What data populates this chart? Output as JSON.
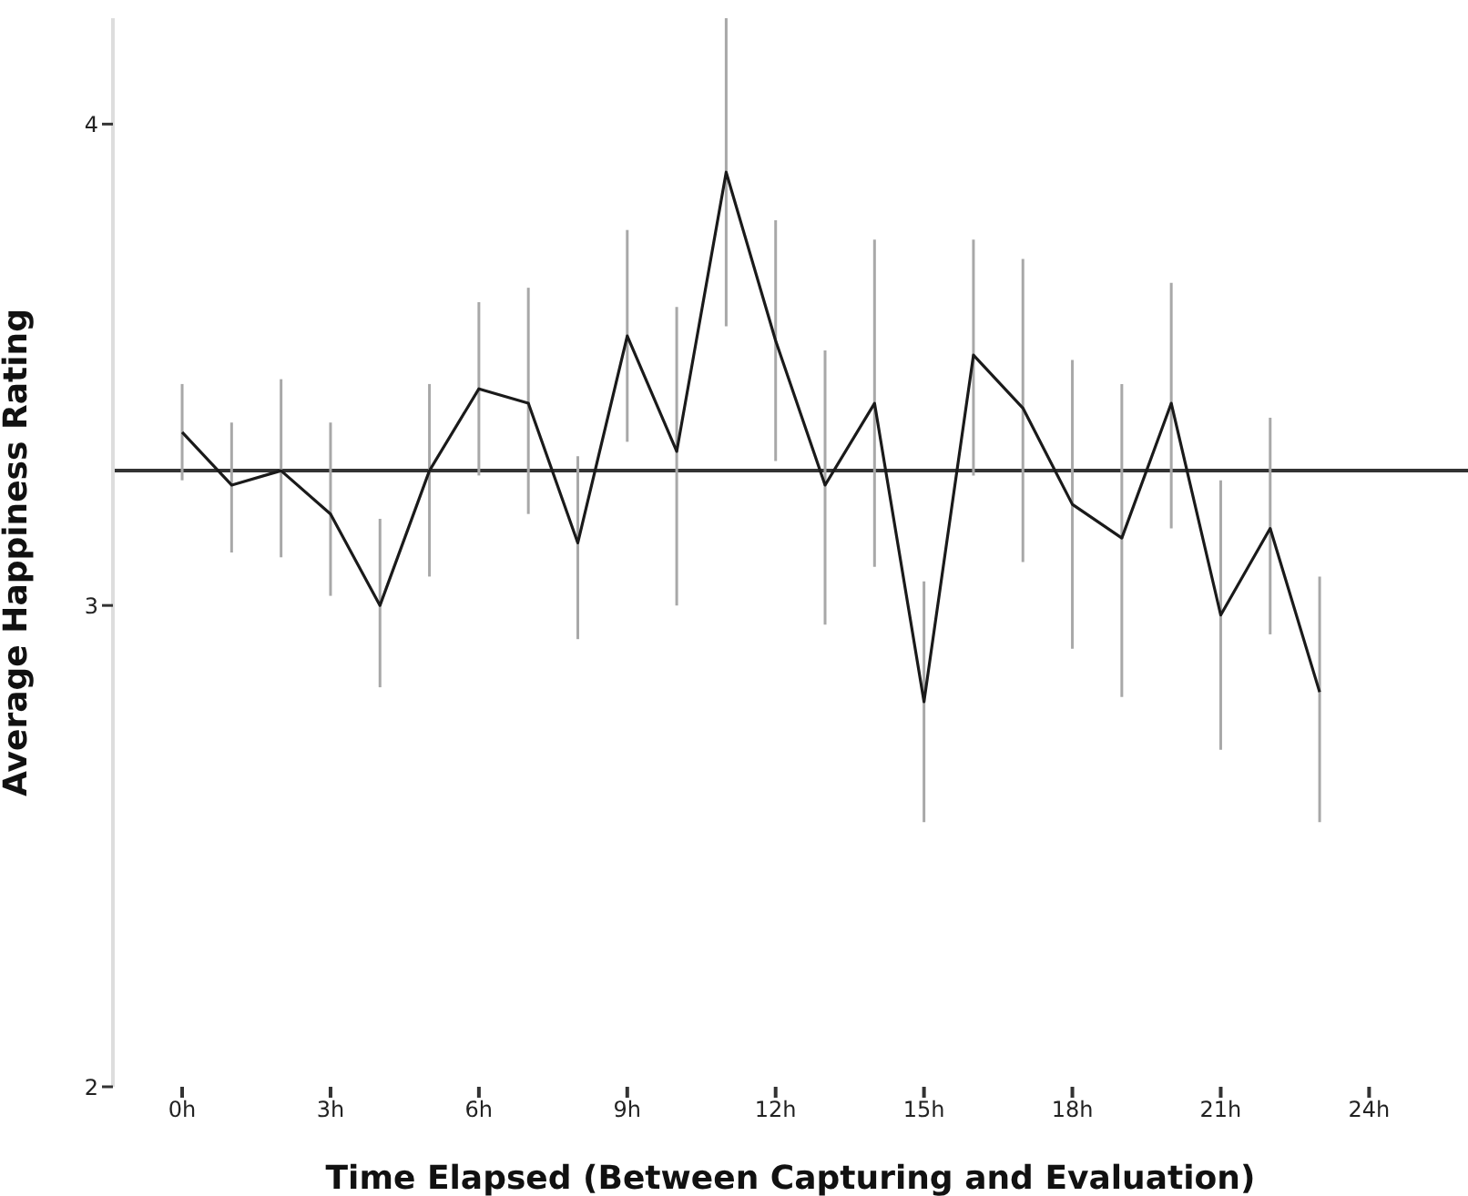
{
  "chart_data": {
    "type": "line",
    "xlabel": "Time Elapsed (Between Capturing and Evaluation)",
    "ylabel": "Average Happiness Rating",
    "x": [
      0,
      1,
      2,
      3,
      4,
      5,
      6,
      7,
      8,
      9,
      10,
      11,
      12,
      13,
      14,
      15,
      16,
      17,
      18,
      19,
      20,
      21,
      22,
      23
    ],
    "series": [
      {
        "color": "#1a1a1a",
        "values": [
          3.36,
          3.25,
          3.28,
          3.19,
          3.0,
          3.28,
          3.45,
          3.42,
          3.13,
          3.56,
          3.32,
          3.9,
          3.55,
          3.25,
          3.42,
          2.8,
          3.52,
          3.41,
          3.21,
          3.14,
          3.42,
          2.98,
          3.16,
          2.82
        ],
        "errors": [
          [
            3.26,
            3.46
          ],
          [
            3.11,
            3.38
          ],
          [
            3.1,
            3.47
          ],
          [
            3.02,
            3.38
          ],
          [
            2.83,
            3.18
          ],
          [
            3.06,
            3.46
          ],
          [
            3.27,
            3.63
          ],
          [
            3.19,
            3.66
          ],
          [
            2.93,
            3.31
          ],
          [
            3.34,
            3.78
          ],
          [
            3.0,
            3.62
          ],
          [
            3.58,
            4.22
          ],
          [
            3.3,
            3.8
          ],
          [
            2.96,
            3.53
          ],
          [
            3.08,
            3.76
          ],
          [
            2.55,
            3.05
          ],
          [
            3.27,
            3.76
          ],
          [
            3.09,
            3.72
          ],
          [
            2.91,
            3.51
          ],
          [
            2.81,
            3.46
          ],
          [
            3.16,
            3.67
          ],
          [
            2.7,
            3.26
          ],
          [
            2.94,
            3.39
          ],
          [
            2.55,
            3.06
          ]
        ]
      }
    ],
    "ref_lines": [
      {
        "axis": "y",
        "value": 3.28,
        "color": "#333333"
      }
    ],
    "xlim": [
      -1.4,
      26
    ],
    "xticks": [
      {
        "value": 0,
        "label": "0h"
      },
      {
        "value": 3,
        "label": "3h"
      },
      {
        "value": 6,
        "label": "6h"
      },
      {
        "value": 9,
        "label": "9h"
      },
      {
        "value": 12,
        "label": "12h"
      },
      {
        "value": 15,
        "label": "15h"
      },
      {
        "value": 18,
        "label": "18h"
      },
      {
        "value": 21,
        "label": "21h"
      },
      {
        "value": 24,
        "label": "24h"
      }
    ],
    "ylim": [
      2,
      4.22
    ],
    "yticks": [
      2,
      3,
      4
    ],
    "grid": false,
    "legend": false,
    "marker": "none",
    "line_style": "solid"
  }
}
